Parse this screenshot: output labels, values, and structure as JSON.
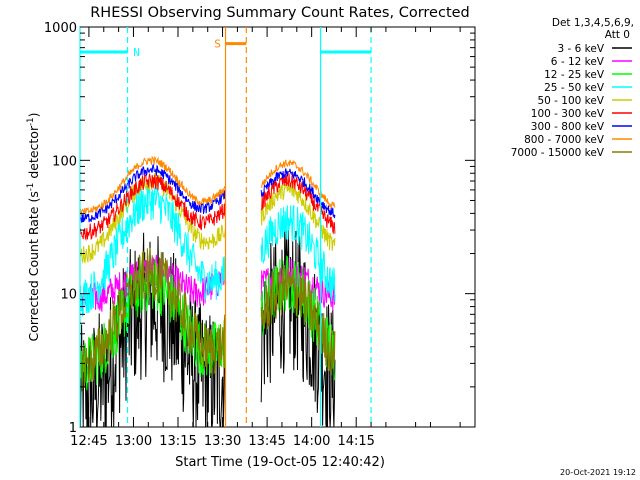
{
  "chart_data": {
    "type": "line",
    "title": "RHESSI Observing Summary Count Rates, Corrected",
    "xlabel": "Start Time (19-Oct-05 12:40:42)",
    "ylabel": "Corrected Count Rate (s",
    "ylabel_sup1": "-1",
    "ylabel_mid": " detector",
    "ylabel_sup2": "-1",
    "ylabel_end": ")",
    "yscale": "log",
    "ylim": [
      1,
      1000
    ],
    "xlim_minutes": [
      42,
      175
    ],
    "x_ticks": [
      {
        "m": 45,
        "label": "12:45"
      },
      {
        "m": 60,
        "label": "13:00"
      },
      {
        "m": 75,
        "label": "13:15"
      },
      {
        "m": 90,
        "label": "13:30"
      },
      {
        "m": 105,
        "label": "13:45"
      },
      {
        "m": 120,
        "label": "14:00"
      },
      {
        "m": 135,
        "label": "14:15"
      }
    ],
    "y_ticks": [
      {
        "v": 1,
        "label": "1"
      },
      {
        "v": 10,
        "label": "10"
      },
      {
        "v": 100,
        "label": "100"
      },
      {
        "v": 1000,
        "label": "1000"
      }
    ],
    "legend_header": [
      "Det 1,3,4,5,6,9,",
      "Att 0"
    ],
    "series": [
      {
        "name": "3 - 6 keV",
        "color": "#000000",
        "base": 1.6,
        "peak": 8.5,
        "p2": 9.0,
        "noise": 0.55,
        "floor": 1.0
      },
      {
        "name": "6 - 12 keV",
        "color": "#ff00ff",
        "base": 9.0,
        "peak": 15.0,
        "p2": 14.5,
        "noise": 0.12
      },
      {
        "name": "12 - 25 keV",
        "color": "#00ff00",
        "base": 2.8,
        "peak": 12.0,
        "p2": 12.0,
        "noise": 0.22
      },
      {
        "name": "25 - 50 keV",
        "color": "#00ffff",
        "base": 9.0,
        "peak": 50.0,
        "p2": 35.0,
        "noise": 0.15
      },
      {
        "name": "50 - 100 keV",
        "color": "#cccc00",
        "base": 19.0,
        "peak": 70.0,
        "p2": 60.0,
        "noise": 0.07
      },
      {
        "name": "100 - 300 keV",
        "color": "#ff0000",
        "base": 28.0,
        "peak": 70.0,
        "p2": 70.0,
        "noise": 0.06
      },
      {
        "name": "300 - 800 keV",
        "color": "#0000ff",
        "base": 36.0,
        "peak": 85.0,
        "p2": 80.0,
        "noise": 0.04
      },
      {
        "name": "800 - 7000 keV",
        "color": "#ff8800",
        "base": 40.0,
        "peak": 100.0,
        "p2": 95.0,
        "noise": 0.03
      },
      {
        "name": "7000 - 15000 keV",
        "color": "#808000",
        "base": 2.8,
        "peak": 14.0,
        "p2": 11.0,
        "noise": 0.2
      }
    ],
    "segments": [
      {
        "start": 42,
        "end": 91
      },
      {
        "start": 103,
        "end": 128
      }
    ],
    "flag_markers": [
      {
        "label": "N",
        "color": "#00ffff",
        "level": 650,
        "ranges": [
          [
            42,
            58
          ],
          [
            123,
            140
          ]
        ],
        "dashed_at": [
          58,
          140
        ],
        "solid_at": [
          42,
          123
        ]
      },
      {
        "label": "S",
        "color": "#ff8800",
        "level": 750,
        "ranges": [
          [
            91,
            98
          ]
        ],
        "dashed_at": [
          98
        ],
        "solid_at": [
          91
        ]
      }
    ],
    "footer": "20-Oct-2021 19:12"
  }
}
